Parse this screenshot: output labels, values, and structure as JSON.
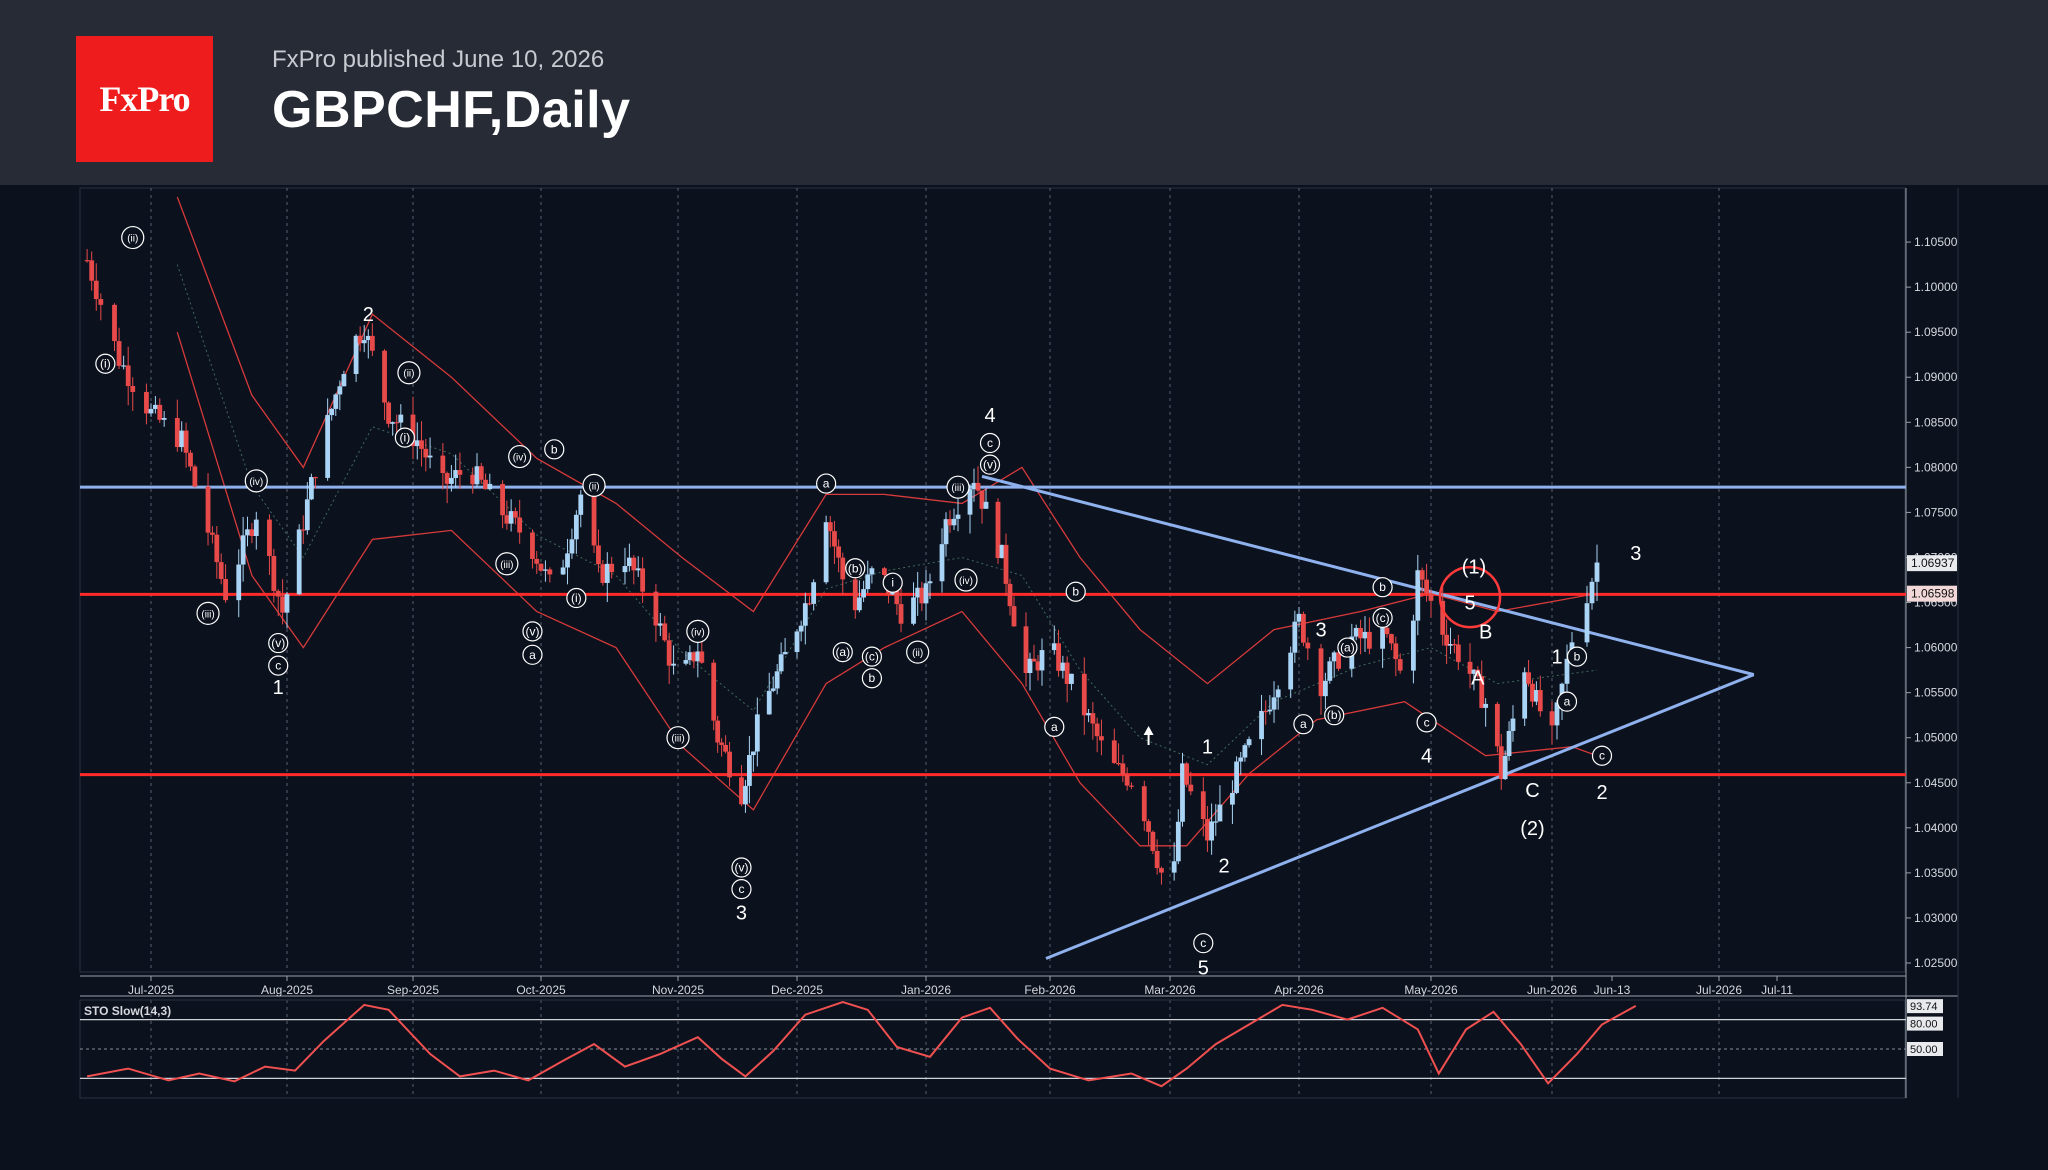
{
  "header": {
    "logo_text": "FxPro",
    "publisher": "FxPro published June 10, 2026",
    "title": "GBPCHF,Daily"
  },
  "colors": {
    "background": "#0b111d",
    "header_bg": "#272b35",
    "logo_red": "#ee1c1c",
    "bull_candle": "#a9d4f5",
    "bear_candle": "#e84a4a",
    "bollinger": "#d63a3a",
    "trendline_blue": "#8fb2ef",
    "level_red": "#ff2a2a",
    "stochastic": "#f05050"
  },
  "chart_data": [
    {
      "type": "candlestick",
      "symbol": "GBPCHF",
      "timeframe": "Daily",
      "ylim": [
        1.024,
        1.111
      ],
      "y_ticks": [
        "1.02500",
        "1.03000",
        "1.03500",
        "1.04000",
        "1.04500",
        "1.05000",
        "1.05500",
        "1.06000",
        "1.06500",
        "1.07000",
        "1.07500",
        "1.08000",
        "1.08500",
        "1.09000",
        "1.09500",
        "1.10000",
        "1.10500"
      ],
      "x_ticks": [
        "Jul-2025",
        "Aug-2025",
        "Sep-2025",
        "Oct-2025",
        "Nov-2025",
        "Dec-2025",
        "Jan-2026",
        "Feb-2026",
        "Mar-2026",
        "Apr-2026",
        "May-2026",
        "Jun-2026",
        "Jun-13",
        "Jul-2026",
        "Jul-11"
      ],
      "price_labels": [
        "1.06937",
        "1.06598"
      ],
      "price_path": [
        [
          "2025-06-17",
          1.103
        ],
        [
          "2025-06-24",
          1.092
        ],
        [
          "2025-07-01",
          1.086
        ],
        [
          "2025-07-08",
          1.083
        ],
        [
          "2025-07-14",
          1.073
        ],
        [
          "2025-07-18",
          1.066
        ],
        [
          "2025-07-25",
          1.075
        ],
        [
          "2025-07-31",
          1.064
        ],
        [
          "2025-08-08",
          1.08
        ],
        [
          "2025-08-16",
          1.093
        ],
        [
          "2025-08-20",
          1.0955
        ],
        [
          "2025-08-26",
          1.086
        ],
        [
          "2025-09-02",
          1.083
        ],
        [
          "2025-09-08",
          1.078
        ],
        [
          "2025-09-14",
          1.08
        ],
        [
          "2025-09-22",
          1.075
        ],
        [
          "2025-09-28",
          1.072
        ],
        [
          "2025-10-04",
          1.066
        ],
        [
          "2025-10-10",
          1.077
        ],
        [
          "2025-10-14",
          1.068
        ],
        [
          "2025-10-20",
          1.07
        ],
        [
          "2025-10-26",
          1.065
        ],
        [
          "2025-11-01",
          1.056
        ],
        [
          "2025-11-06",
          1.06
        ],
        [
          "2025-11-11",
          1.05
        ],
        [
          "2025-11-17",
          1.044
        ],
        [
          "2025-11-22",
          1.053
        ],
        [
          "2025-11-28",
          1.059
        ],
        [
          "2025-12-04",
          1.066
        ],
        [
          "2025-12-08",
          1.075
        ],
        [
          "2025-12-14",
          1.064
        ],
        [
          "2025-12-20",
          1.069
        ],
        [
          "2025-12-26",
          1.064
        ],
        [
          "2026-01-01",
          1.066
        ],
        [
          "2026-01-06",
          1.074
        ],
        [
          "2026-01-13",
          1.079
        ],
        [
          "2026-01-20",
          1.07
        ],
        [
          "2026-01-26",
          1.057
        ],
        [
          "2026-02-01",
          1.06
        ],
        [
          "2026-02-07",
          1.055
        ],
        [
          "2026-02-15",
          1.047
        ],
        [
          "2026-02-21",
          1.045
        ],
        [
          "2026-02-27",
          1.035
        ],
        [
          "2026-03-01",
          1.03
        ],
        [
          "2026-03-04",
          1.046
        ],
        [
          "2026-03-10",
          1.039
        ],
        [
          "2026-03-18",
          1.047
        ],
        [
          "2026-03-24",
          1.053
        ],
        [
          "2026-04-01",
          1.063
        ],
        [
          "2026-04-06",
          1.056
        ],
        [
          "2026-04-13",
          1.061
        ],
        [
          "2026-04-21",
          1.061
        ],
        [
          "2026-04-25",
          1.056
        ],
        [
          "2026-04-28",
          1.068
        ],
        [
          "2026-05-04",
          1.062
        ],
        [
          "2026-05-10",
          1.058
        ],
        [
          "2026-05-16",
          1.053
        ],
        [
          "2026-05-19",
          1.046
        ],
        [
          "2026-05-25",
          1.058
        ],
        [
          "2026-05-28",
          1.054
        ],
        [
          "2026-06-01",
          1.05
        ],
        [
          "2026-06-05",
          1.061
        ],
        [
          "2026-06-10",
          1.0694
        ]
      ],
      "bollinger_upper": [
        [
          "2025-07-07",
          1.11
        ],
        [
          "2025-07-24",
          1.088
        ],
        [
          "2025-08-05",
          1.08
        ],
        [
          "2025-08-22",
          1.097
        ],
        [
          "2025-09-10",
          1.09
        ],
        [
          "2025-09-30",
          1.081
        ],
        [
          "2025-10-18",
          1.076
        ],
        [
          "2025-11-02",
          1.07
        ],
        [
          "2025-11-20",
          1.064
        ],
        [
          "2025-12-08",
          1.077
        ],
        [
          "2025-12-22",
          1.077
        ],
        [
          "2026-01-10",
          1.076
        ],
        [
          "2026-01-25",
          1.08
        ],
        [
          "2026-02-08",
          1.07
        ],
        [
          "2026-02-22",
          1.062
        ],
        [
          "2026-03-10",
          1.056
        ],
        [
          "2026-03-26",
          1.062
        ],
        [
          "2026-04-15",
          1.064
        ],
        [
          "2026-05-01",
          1.066
        ],
        [
          "2026-05-18",
          1.064
        ],
        [
          "2026-06-10",
          1.066
        ]
      ],
      "bollinger_lower": [
        [
          "2025-07-07",
          1.095
        ],
        [
          "2025-07-24",
          1.068
        ],
        [
          "2025-08-05",
          1.06
        ],
        [
          "2025-08-22",
          1.072
        ],
        [
          "2025-09-10",
          1.073
        ],
        [
          "2025-09-30",
          1.064
        ],
        [
          "2025-10-18",
          1.06
        ],
        [
          "2025-11-02",
          1.049
        ],
        [
          "2025-11-20",
          1.042
        ],
        [
          "2025-12-08",
          1.056
        ],
        [
          "2025-12-22",
          1.06
        ],
        [
          "2026-01-10",
          1.064
        ],
        [
          "2026-01-25",
          1.056
        ],
        [
          "2026-02-08",
          1.045
        ],
        [
          "2026-02-22",
          1.038
        ],
        [
          "2026-03-05",
          1.038
        ],
        [
          "2026-03-20",
          1.046
        ],
        [
          "2026-04-05",
          1.052
        ],
        [
          "2026-04-25",
          1.054
        ],
        [
          "2026-05-15",
          1.048
        ],
        [
          "2026-06-05",
          1.049
        ],
        [
          "2026-06-10",
          1.048
        ]
      ],
      "horizontal_levels": [
        {
          "price": 1.0778,
          "color": "#8fb2ef"
        },
        {
          "price": 1.0659,
          "color": "#ff2a2a"
        },
        {
          "price": 1.0459,
          "color": "#ff2a2a"
        }
      ],
      "triangle": {
        "upper": [
          [
            "2026-01-15",
            1.079
          ],
          [
            "2026-07-07",
            1.057
          ]
        ],
        "lower": [
          [
            "2026-01-31",
            1.0255
          ],
          [
            "2026-07-07",
            1.057
          ]
        ]
      },
      "wave_labels": [
        [
          "(ii)",
          "2025-06-27",
          1.1055,
          "c"
        ],
        [
          "(i)",
          "2025-06-21",
          1.0915,
          "c"
        ],
        [
          "(iii)",
          "2025-07-14",
          1.0638,
          "c"
        ],
        [
          "(iv)",
          "2025-07-25",
          1.0785,
          "c"
        ],
        [
          "(v)",
          "2025-07-30",
          1.0605,
          "c"
        ],
        [
          "c",
          "2025-07-30",
          1.058,
          "c"
        ],
        [
          "1",
          "2025-07-30",
          1.0556,
          "t"
        ],
        [
          "2",
          "2025-08-21",
          1.097,
          "t"
        ],
        [
          "(ii)",
          "2025-08-31",
          1.0905,
          "c"
        ],
        [
          "(i)",
          "2025-08-30",
          1.0833,
          "c"
        ],
        [
          "(iii)",
          "2025-09-23",
          1.0693,
          "c"
        ],
        [
          "(iv)",
          "2025-09-26",
          1.0812,
          "c"
        ],
        [
          "b",
          "2025-10-04",
          1.082,
          "c"
        ],
        [
          "(ii)",
          "2025-10-13",
          1.078,
          "c"
        ],
        [
          "(i)",
          "2025-10-09",
          1.0655,
          "c"
        ],
        [
          "(v)",
          "2025-09-29",
          1.0618,
          "c"
        ],
        [
          "a",
          "2025-09-29",
          1.0592,
          "c"
        ],
        [
          "(iv)",
          "2025-11-06",
          1.0618,
          "c"
        ],
        [
          "(iii)",
          "2025-11-01",
          1.05,
          "c"
        ],
        [
          "(v)",
          "2025-11-17",
          1.0356,
          "c"
        ],
        [
          "c",
          "2025-11-17",
          1.0332,
          "c"
        ],
        [
          "3",
          "2025-11-17",
          1.0306,
          "t"
        ],
        [
          "a",
          "2025-12-08",
          1.0782,
          "c"
        ],
        [
          "(b)",
          "2025-12-15",
          1.0688,
          "c"
        ],
        [
          "i",
          "2025-12-24",
          1.0672,
          "c"
        ],
        [
          "(a)",
          "2025-12-12",
          1.0595,
          "c"
        ],
        [
          "(c)",
          "2025-12-19",
          1.059,
          "c"
        ],
        [
          "b",
          "2025-12-19",
          1.0566,
          "c"
        ],
        [
          "(ii)",
          "2025-12-30",
          1.0595,
          "c"
        ],
        [
          "(iii)",
          "2026-01-09",
          1.0778,
          "c"
        ],
        [
          "(iv)",
          "2026-01-11",
          1.0675,
          "c"
        ],
        [
          "(v)",
          "2026-01-17",
          1.0803,
          "c"
        ],
        [
          "c",
          "2026-01-17",
          1.0827,
          "c"
        ],
        [
          "4",
          "2026-01-17",
          1.0858,
          "t"
        ],
        [
          "b",
          "2026-02-07",
          1.0662,
          "c"
        ],
        [
          "a",
          "2026-02-02",
          1.0512,
          "c"
        ],
        [
          "1",
          "2026-03-10",
          1.049,
          "t"
        ],
        [
          "2",
          "2026-03-14",
          1.0358,
          "t"
        ],
        [
          "c",
          "2026-03-09",
          1.0272,
          "c"
        ],
        [
          "5",
          "2026-03-09",
          1.0245,
          "t"
        ],
        [
          "3",
          "2026-04-06",
          1.062,
          "t"
        ],
        [
          "a",
          "2026-04-02",
          1.0515,
          "c"
        ],
        [
          "(b)",
          "2026-04-09",
          1.0525,
          "c"
        ],
        [
          "(a)",
          "2026-04-12",
          1.06,
          "c"
        ],
        [
          "b",
          "2026-04-20",
          1.0667,
          "c"
        ],
        [
          "(c)",
          "2026-04-20",
          1.0633,
          "c"
        ],
        [
          "c",
          "2026-04-30",
          1.0517,
          "c"
        ],
        [
          "4",
          "2026-04-30",
          1.048,
          "t"
        ],
        [
          "(1)",
          "2026-05-12",
          1.069,
          "t"
        ],
        [
          "5",
          "2026-05-11",
          1.065,
          "t"
        ],
        [
          "B",
          "2026-05-15",
          1.0618,
          "t"
        ],
        [
          "A",
          "2026-05-13",
          1.0567,
          "t"
        ],
        [
          "C",
          "2026-05-27",
          1.0442,
          "t"
        ],
        [
          "(2)",
          "2026-05-27",
          1.04,
          "t"
        ],
        [
          "1",
          "2026-06-02",
          1.059,
          "t"
        ],
        [
          "b",
          "2026-06-06",
          1.059,
          "c"
        ],
        [
          "a",
          "2026-06-04",
          1.054,
          "c"
        ],
        [
          "c",
          "2026-06-11",
          1.048,
          "c"
        ],
        [
          "2",
          "2026-06-11",
          1.044,
          "t"
        ],
        [
          "3",
          "2026-06-17",
          1.0705,
          "t"
        ]
      ]
    },
    {
      "type": "line",
      "title": "STO Slow(14,3)",
      "ylim": [
        0,
        100
      ],
      "levels": [
        80,
        20
      ],
      "value_labels": [
        "93.74",
        "80.00",
        "50.00"
      ],
      "values": [
        [
          "2025-06-17",
          22
        ],
        [
          "2025-06-26",
          30
        ],
        [
          "2025-07-05",
          18
        ],
        [
          "2025-07-12",
          25
        ],
        [
          "2025-07-20",
          17
        ],
        [
          "2025-07-27",
          32
        ],
        [
          "2025-08-03",
          28
        ],
        [
          "2025-08-10",
          58
        ],
        [
          "2025-08-20",
          95
        ],
        [
          "2025-08-26",
          90
        ],
        [
          "2025-09-05",
          45
        ],
        [
          "2025-09-12",
          22
        ],
        [
          "2025-09-20",
          28
        ],
        [
          "2025-09-28",
          18
        ],
        [
          "2025-10-06",
          38
        ],
        [
          "2025-10-13",
          55
        ],
        [
          "2025-10-20",
          32
        ],
        [
          "2025-10-28",
          45
        ],
        [
          "2025-11-06",
          62
        ],
        [
          "2025-11-12",
          40
        ],
        [
          "2025-11-18",
          22
        ],
        [
          "2025-11-25",
          48
        ],
        [
          "2025-12-03",
          85
        ],
        [
          "2025-12-12",
          98
        ],
        [
          "2025-12-18",
          90
        ],
        [
          "2025-12-25",
          52
        ],
        [
          "2026-01-02",
          42
        ],
        [
          "2026-01-10",
          82
        ],
        [
          "2026-01-17",
          92
        ],
        [
          "2026-01-24",
          60
        ],
        [
          "2026-02-01",
          30
        ],
        [
          "2026-02-10",
          18
        ],
        [
          "2026-02-20",
          25
        ],
        [
          "2026-02-27",
          12
        ],
        [
          "2026-03-05",
          30
        ],
        [
          "2026-03-12",
          55
        ],
        [
          "2026-03-20",
          75
        ],
        [
          "2026-03-28",
          95
        ],
        [
          "2026-04-04",
          90
        ],
        [
          "2026-04-12",
          80
        ],
        [
          "2026-04-20",
          92
        ],
        [
          "2026-04-28",
          70
        ],
        [
          "2026-05-03",
          25
        ],
        [
          "2026-05-10",
          70
        ],
        [
          "2026-05-17",
          88
        ],
        [
          "2026-05-24",
          55
        ],
        [
          "2026-05-31",
          15
        ],
        [
          "2026-06-06",
          45
        ],
        [
          "2026-06-11",
          75
        ],
        [
          "2026-06-17",
          94
        ]
      ]
    }
  ]
}
